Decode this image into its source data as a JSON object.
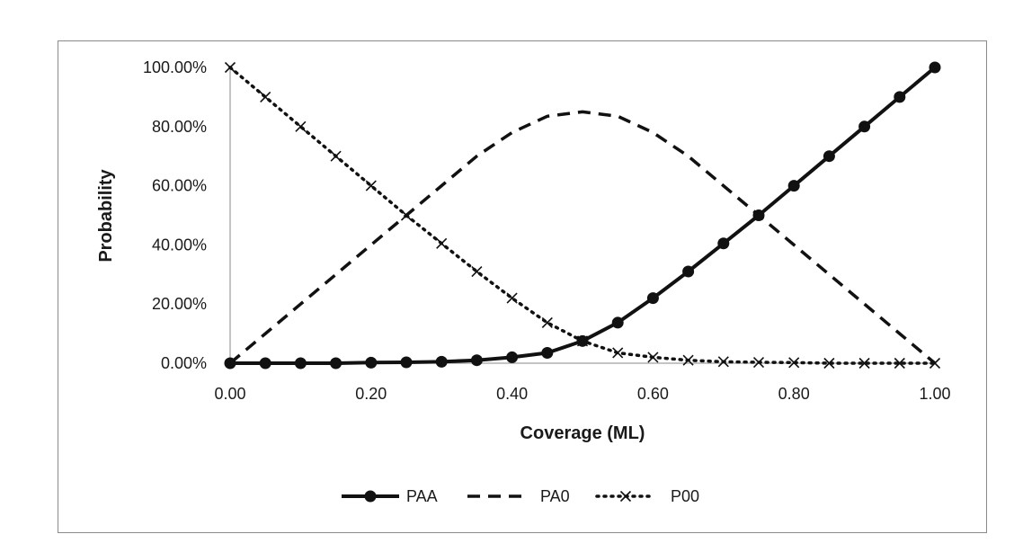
{
  "chart_data": {
    "type": "line",
    "xlabel": "Coverage (ML)",
    "ylabel": "Probability",
    "xlim": [
      0,
      1
    ],
    "ylim": [
      0,
      1
    ],
    "x_ticks": [
      "0.00",
      "0.20",
      "0.40",
      "0.60",
      "0.80",
      "1.00"
    ],
    "y_ticks": [
      "0.00%",
      "20.00%",
      "40.00%",
      "60.00%",
      "80.00%",
      "100.00%"
    ],
    "grid": false,
    "legend_position": "bottom",
    "x": [
      0,
      0.05,
      0.1,
      0.15,
      0.2,
      0.25,
      0.3,
      0.35,
      0.4,
      0.45,
      0.5,
      0.55,
      0.6,
      0.65,
      0.7,
      0.75,
      0.8,
      0.85,
      0.9,
      0.95,
      1.0
    ],
    "series": [
      {
        "name": "PAA",
        "style": "solid",
        "marker": "circle",
        "values": [
          0.0,
          0.0,
          0.0,
          0.0,
          0.002,
          0.003,
          0.005,
          0.01,
          0.02,
          0.035,
          0.075,
          0.137,
          0.22,
          0.31,
          0.405,
          0.5,
          0.6,
          0.7,
          0.8,
          0.9,
          1.0
        ]
      },
      {
        "name": "PA0",
        "style": "dashed",
        "marker": "none",
        "values": [
          0.0,
          0.1,
          0.2,
          0.3,
          0.4,
          0.5,
          0.6,
          0.7,
          0.78,
          0.835,
          0.85,
          0.835,
          0.78,
          0.7,
          0.6,
          0.5,
          0.4,
          0.3,
          0.2,
          0.1,
          0.0
        ]
      },
      {
        "name": "P00",
        "style": "dotted",
        "marker": "x",
        "values": [
          1.0,
          0.9,
          0.8,
          0.7,
          0.6,
          0.5,
          0.405,
          0.31,
          0.22,
          0.137,
          0.075,
          0.035,
          0.02,
          0.01,
          0.005,
          0.003,
          0.002,
          0.0,
          0.0,
          0.0,
          0.0
        ]
      }
    ]
  }
}
